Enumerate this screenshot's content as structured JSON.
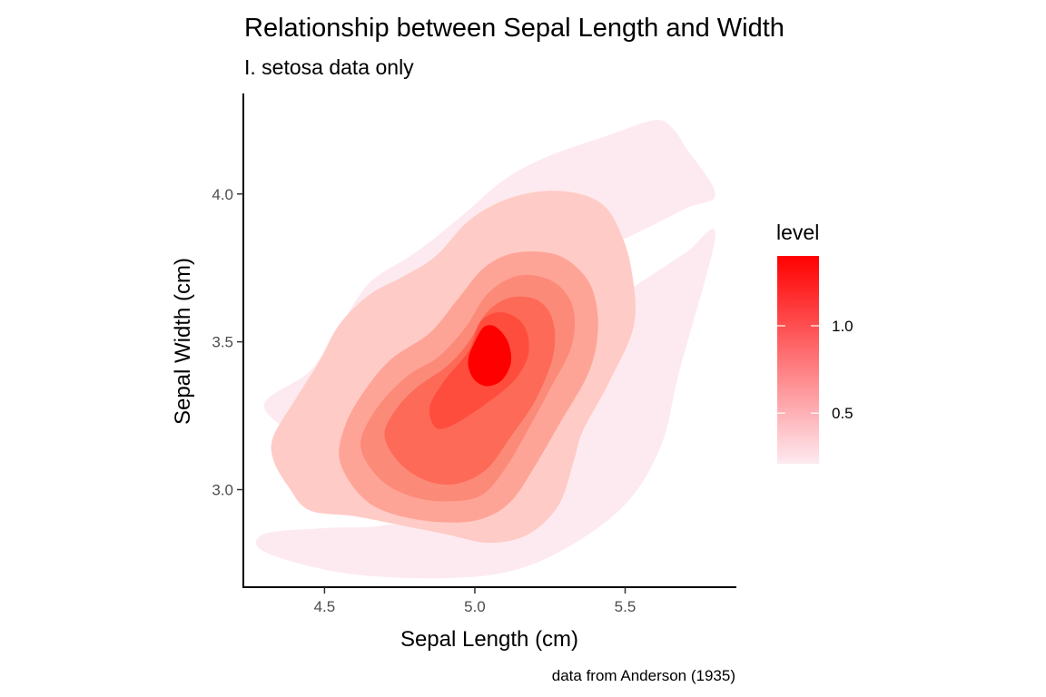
{
  "chart_data": {
    "type": "density2d_filled",
    "title": "Relationship between Sepal Length and Width",
    "subtitle": "I. setosa data only",
    "xlabel": "Sepal Length (cm)",
    "ylabel": "Sepal Width (cm)",
    "caption": "data from Anderson (1935)",
    "xlim": [
      4.23,
      5.87
    ],
    "ylim": [
      2.67,
      4.34
    ],
    "x_ticks": [
      {
        "value": 4.5,
        "label": "4.5"
      },
      {
        "value": 5.0,
        "label": "5.0"
      },
      {
        "value": 5.5,
        "label": "5.5"
      }
    ],
    "y_ticks": [
      {
        "value": 3.0,
        "label": "3.0"
      },
      {
        "value": 3.5,
        "label": "3.5"
      },
      {
        "value": 4.0,
        "label": "4.0"
      }
    ],
    "grid": false,
    "legend": {
      "title": "level",
      "position": "right",
      "range": [
        0.21,
        1.4
      ],
      "ticks": [
        {
          "value": 0.5,
          "label": "0.5"
        },
        {
          "value": 1.0,
          "label": "1.0"
        }
      ],
      "color_low": "#fdeaf0",
      "color_high": "#ff0000"
    },
    "density_peak": {
      "x": 5.04,
      "y": 3.44
    },
    "levels": [
      {
        "level": 0.21,
        "color": "#fdeaf0",
        "polygons": [
          [
            [
              4.3,
              2.79
            ],
            [
              4.55,
              2.72
            ],
            [
              4.85,
              2.7
            ],
            [
              5.1,
              2.72
            ],
            [
              5.3,
              2.8
            ],
            [
              5.5,
              2.95
            ],
            [
              5.62,
              3.15
            ],
            [
              5.68,
              3.4
            ],
            [
              5.8,
              3.86
            ],
            [
              5.7,
              3.8
            ],
            [
              5.55,
              3.7
            ],
            [
              5.4,
              3.6
            ],
            [
              5.3,
              3.56
            ],
            [
              4.9,
              2.95
            ],
            [
              4.7,
              2.88
            ],
            [
              4.5,
              2.87
            ],
            [
              4.3,
              2.85
            ]
          ],
          [
            [
              4.3,
              3.29
            ],
            [
              4.45,
              3.4
            ],
            [
              4.55,
              3.55
            ],
            [
              4.65,
              3.7
            ],
            [
              4.8,
              3.8
            ],
            [
              4.95,
              3.92
            ],
            [
              5.1,
              4.05
            ],
            [
              5.25,
              4.13
            ],
            [
              5.45,
              4.2
            ],
            [
              5.6,
              4.25
            ],
            [
              5.66,
              4.22
            ],
            [
              5.7,
              4.16
            ],
            [
              5.8,
              4.0
            ],
            [
              5.7,
              3.95
            ],
            [
              5.5,
              3.85
            ],
            [
              5.35,
              3.8
            ],
            [
              5.3,
              3.78
            ],
            [
              5.2,
              3.3
            ],
            [
              4.6,
              3.0
            ],
            [
              4.4,
              3.18
            ]
          ]
        ]
      },
      {
        "level": 0.42,
        "color": "#ffcbc6",
        "polygons": [
          [
            [
              4.33,
              3.1
            ],
            [
              4.38,
              3.01
            ],
            [
              4.45,
              2.93
            ],
            [
              4.6,
              2.91
            ],
            [
              4.75,
              2.88
            ],
            [
              4.9,
              2.85
            ],
            [
              5.05,
              2.82
            ],
            [
              5.18,
              2.85
            ],
            [
              5.28,
              2.95
            ],
            [
              5.33,
              3.1
            ],
            [
              5.36,
              3.2
            ],
            [
              5.45,
              3.37
            ],
            [
              5.53,
              3.56
            ],
            [
              5.52,
              3.75
            ],
            [
              5.48,
              3.88
            ],
            [
              5.43,
              3.96
            ],
            [
              5.35,
              4.0
            ],
            [
              5.23,
              4.01
            ],
            [
              5.1,
              3.98
            ],
            [
              4.98,
              3.91
            ],
            [
              4.87,
              3.79
            ],
            [
              4.76,
              3.72
            ],
            [
              4.65,
              3.66
            ],
            [
              4.55,
              3.56
            ],
            [
              4.48,
              3.43
            ],
            [
              4.4,
              3.3
            ],
            [
              4.33,
              3.18
            ]
          ]
        ]
      },
      {
        "level": 0.62,
        "color": "#fea497",
        "polygons": [
          [
            [
              4.55,
              3.1
            ],
            [
              4.62,
              2.98
            ],
            [
              4.72,
              2.92
            ],
            [
              4.88,
              2.89
            ],
            [
              5.02,
              2.9
            ],
            [
              5.12,
              2.96
            ],
            [
              5.2,
              3.08
            ],
            [
              5.28,
              3.22
            ],
            [
              5.38,
              3.4
            ],
            [
              5.41,
              3.55
            ],
            [
              5.39,
              3.68
            ],
            [
              5.33,
              3.76
            ],
            [
              5.25,
              3.8
            ],
            [
              5.13,
              3.8
            ],
            [
              5.03,
              3.75
            ],
            [
              4.94,
              3.64
            ],
            [
              4.85,
              3.53
            ],
            [
              4.72,
              3.44
            ],
            [
              4.63,
              3.33
            ],
            [
              4.57,
              3.22
            ]
          ]
        ]
      },
      {
        "level": 0.83,
        "color": "#fc8a78",
        "polygons": [
          [
            [
              4.62,
              3.15
            ],
            [
              4.68,
              3.04
            ],
            [
              4.78,
              2.98
            ],
            [
              4.9,
              2.96
            ],
            [
              5.02,
              2.98
            ],
            [
              5.1,
              3.07
            ],
            [
              5.17,
              3.19
            ],
            [
              5.25,
              3.34
            ],
            [
              5.32,
              3.48
            ],
            [
              5.33,
              3.6
            ],
            [
              5.29,
              3.68
            ],
            [
              5.22,
              3.72
            ],
            [
              5.13,
              3.72
            ],
            [
              5.04,
              3.66
            ],
            [
              4.97,
              3.55
            ],
            [
              4.88,
              3.45
            ],
            [
              4.77,
              3.38
            ],
            [
              4.67,
              3.27
            ]
          ]
        ]
      },
      {
        "level": 1.04,
        "color": "#fd6a57",
        "polygons": [
          [
            [
              4.7,
              3.18
            ],
            [
              4.75,
              3.09
            ],
            [
              4.84,
              3.03
            ],
            [
              4.94,
              3.02
            ],
            [
              5.04,
              3.07
            ],
            [
              5.12,
              3.18
            ],
            [
              5.2,
              3.3
            ],
            [
              5.26,
              3.45
            ],
            [
              5.26,
              3.57
            ],
            [
              5.21,
              3.64
            ],
            [
              5.12,
              3.65
            ],
            [
              5.04,
              3.6
            ],
            [
              4.98,
              3.5
            ],
            [
              4.91,
              3.42
            ],
            [
              4.8,
              3.34
            ],
            [
              4.73,
              3.26
            ]
          ]
        ]
      },
      {
        "level": 1.25,
        "color": "#ff4d3d",
        "polygons": [
          [
            [
              4.87,
              3.21
            ],
            [
              4.93,
              3.22
            ],
            [
              5.05,
              3.3
            ],
            [
              5.14,
              3.38
            ],
            [
              5.18,
              3.47
            ],
            [
              5.16,
              3.56
            ],
            [
              5.09,
              3.6
            ],
            [
              5.02,
              3.57
            ],
            [
              4.98,
              3.47
            ],
            [
              4.9,
              3.37
            ],
            [
              4.85,
              3.28
            ]
          ]
        ]
      },
      {
        "level": 1.4,
        "color": "#ff0000",
        "polygons": [
          [
            [
              4.98,
              3.41
            ],
            [
              5.0,
              3.37
            ],
            [
              5.04,
              3.35
            ],
            [
              5.09,
              3.37
            ],
            [
              5.12,
              3.43
            ],
            [
              5.11,
              3.5
            ],
            [
              5.07,
              3.55
            ],
            [
              5.03,
              3.55
            ],
            [
              5.0,
              3.5
            ],
            [
              4.98,
              3.45
            ]
          ]
        ]
      }
    ]
  }
}
